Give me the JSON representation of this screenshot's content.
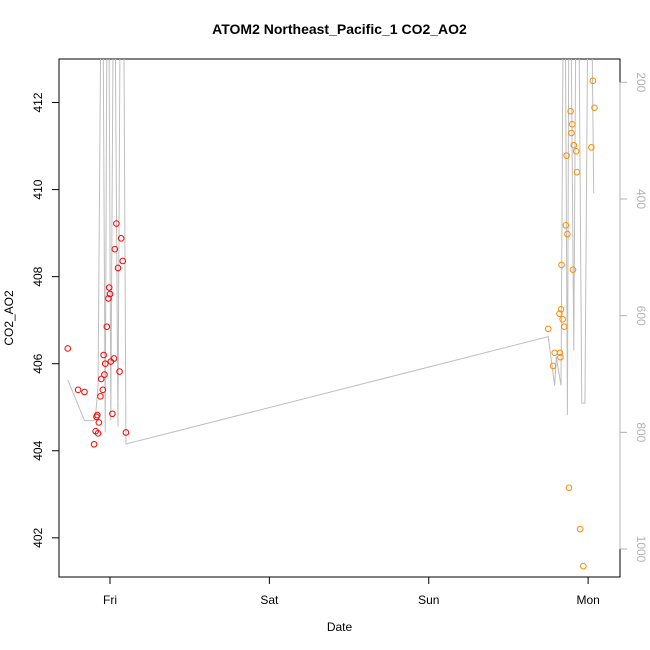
{
  "chart_data": {
    "type": "scatter",
    "title": "ATOM2 Northeast_Pacific_1 CO2_AO2",
    "xlabel": "Date",
    "ylabel": "CO2_AO2",
    "x_ticks": [
      "Fri",
      "Sat",
      "Sun",
      "Mon"
    ],
    "y_ticks": [
      402,
      404,
      406,
      408,
      410,
      412
    ],
    "y2_ticks": [
      200,
      400,
      600,
      800,
      1000
    ],
    "xlim_days": [
      -0.32,
      3.2
    ],
    "ylim": [
      401.1,
      413
    ],
    "y2lim": [
      1048,
      160
    ],
    "grid": false,
    "legend": "none",
    "colors": {
      "series1": "#ff0000",
      "series2": "#ff8c00",
      "altitude": "#bebebe",
      "axes": "#000000",
      "right_axis": "#b3b3b3"
    },
    "series": [
      {
        "color": "#ff0000",
        "points": [
          [
            -0.265,
            406.35
          ],
          [
            -0.2,
            405.4
          ],
          [
            -0.16,
            405.35
          ],
          [
            -0.1,
            404.15
          ],
          [
            -0.09,
            404.45
          ],
          [
            -0.085,
            404.78
          ],
          [
            -0.08,
            404.82
          ],
          [
            -0.075,
            404.4
          ],
          [
            -0.07,
            404.65
          ],
          [
            -0.06,
            405.25
          ],
          [
            -0.055,
            405.65
          ],
          [
            -0.045,
            405.4
          ],
          [
            -0.04,
            406.2
          ],
          [
            -0.035,
            405.75
          ],
          [
            -0.03,
            406.0
          ],
          [
            -0.02,
            406.85
          ],
          [
            -0.01,
            407.5
          ],
          [
            -0.005,
            407.75
          ],
          [
            0.0,
            407.6
          ],
          [
            0.005,
            406.05
          ],
          [
            0.015,
            404.85
          ],
          [
            0.025,
            406.12
          ],
          [
            0.03,
            408.63
          ],
          [
            0.04,
            409.22
          ],
          [
            0.05,
            408.2
          ],
          [
            0.06,
            405.82
          ],
          [
            0.07,
            408.88
          ],
          [
            0.08,
            408.36
          ],
          [
            0.1,
            404.42
          ]
        ]
      },
      {
        "color": "#ff8c00",
        "points": [
          [
            2.75,
            406.8
          ],
          [
            2.78,
            405.95
          ],
          [
            2.79,
            406.25
          ],
          [
            2.82,
            407.15
          ],
          [
            2.823,
            406.25
          ],
          [
            2.826,
            406.15
          ],
          [
            2.83,
            407.25
          ],
          [
            2.833,
            408.27
          ],
          [
            2.84,
            407.02
          ],
          [
            2.85,
            406.85
          ],
          [
            2.86,
            409.18
          ],
          [
            2.865,
            410.78
          ],
          [
            2.87,
            408.98
          ],
          [
            2.88,
            403.15
          ],
          [
            2.89,
            411.8
          ],
          [
            2.895,
            411.3
          ],
          [
            2.9,
            411.5
          ],
          [
            2.905,
            408.16
          ],
          [
            2.91,
            411.02
          ],
          [
            2.925,
            410.88
          ],
          [
            2.93,
            410.4
          ],
          [
            2.95,
            402.2
          ],
          [
            2.97,
            401.35
          ],
          [
            3.02,
            410.97
          ],
          [
            3.03,
            412.5
          ],
          [
            3.04,
            411.88
          ]
        ]
      }
    ],
    "altitude_line": [
      [
        -0.265,
        710
      ],
      [
        -0.16,
        780
      ],
      [
        -0.1,
        780
      ],
      [
        -0.09,
        770
      ],
      [
        -0.075,
        720
      ],
      [
        -0.055,
        0
      ],
      [
        -0.045,
        0
      ],
      [
        -0.03,
        800
      ],
      [
        -0.018,
        0
      ],
      [
        -0.008,
        0
      ],
      [
        0.005,
        780
      ],
      [
        0.022,
        0
      ],
      [
        0.03,
        0
      ],
      [
        0.05,
        790
      ],
      [
        0.065,
        0
      ],
      [
        0.085,
        0
      ],
      [
        0.1,
        820
      ],
      [
        2.75,
        636
      ],
      [
        2.79,
        720
      ],
      [
        2.8,
        670
      ],
      [
        2.83,
        720
      ],
      [
        2.845,
        0
      ],
      [
        2.855,
        0
      ],
      [
        2.87,
        770
      ],
      [
        2.88,
        0
      ],
      [
        2.89,
        0
      ],
      [
        2.91,
        660
      ],
      [
        2.925,
        0
      ],
      [
        2.94,
        0
      ],
      [
        2.96,
        750
      ],
      [
        2.98,
        750
      ],
      [
        3.0,
        0
      ],
      [
        3.02,
        0
      ],
      [
        3.035,
        390
      ]
    ]
  }
}
